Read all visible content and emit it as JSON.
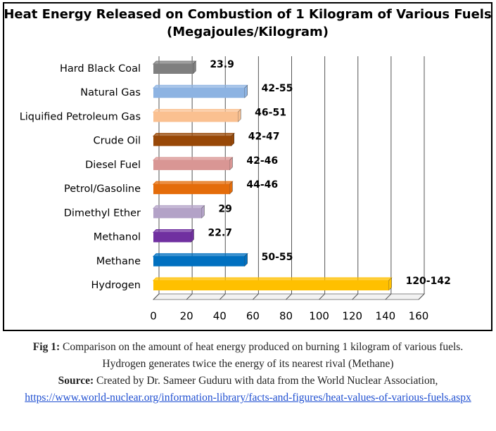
{
  "chart_data": {
    "type": "hbar",
    "title": "Heat Energy Released on Combustion of 1 Kilogram of Various Fuels",
    "subtitle": "(Megajoules/Kilogram)",
    "categories": [
      "Hard Black Coal",
      "Natural Gas",
      "Liquified Petroleum Gas",
      "Crude Oil",
      "Diesel Fuel",
      "Petrol/Gasoline",
      "Dimethyl Ether",
      "Methanol",
      "Methane",
      "Hydrogen"
    ],
    "values": [
      23.9,
      55,
      51,
      47,
      46,
      46,
      29,
      22.7,
      55,
      142
    ],
    "value_labels": [
      "23.9",
      "42-55",
      "46-51",
      "42-47",
      "42-46",
      "44-46",
      "29",
      "22.7",
      "50-55",
      "120-142"
    ],
    "colors": [
      "#7f7f7f",
      "#8db3e2",
      "#fac090",
      "#984807",
      "#d99694",
      "#e46c0a",
      "#b3a2c7",
      "#7030a0",
      "#0070c0",
      "#ffc000"
    ],
    "xlim": [
      0,
      160
    ],
    "xticks": [
      0,
      20,
      40,
      60,
      80,
      100,
      120,
      140,
      160
    ],
    "grid": true
  },
  "caption": {
    "fig_label": "Fig 1:",
    "text": "Comparison on the amount of heat energy produced on burning 1 kilogram of various fuels.  Hydrogen generates twice the energy of its nearest rival (Methane)",
    "source_label": "Source:",
    "source_text": "Created by Dr. Sameer Guduru with data from the World Nuclear Association,",
    "url": "https://www.world-nuclear.org/information-library/facts-and-figures/heat-values-of-various-fuels.aspx"
  }
}
